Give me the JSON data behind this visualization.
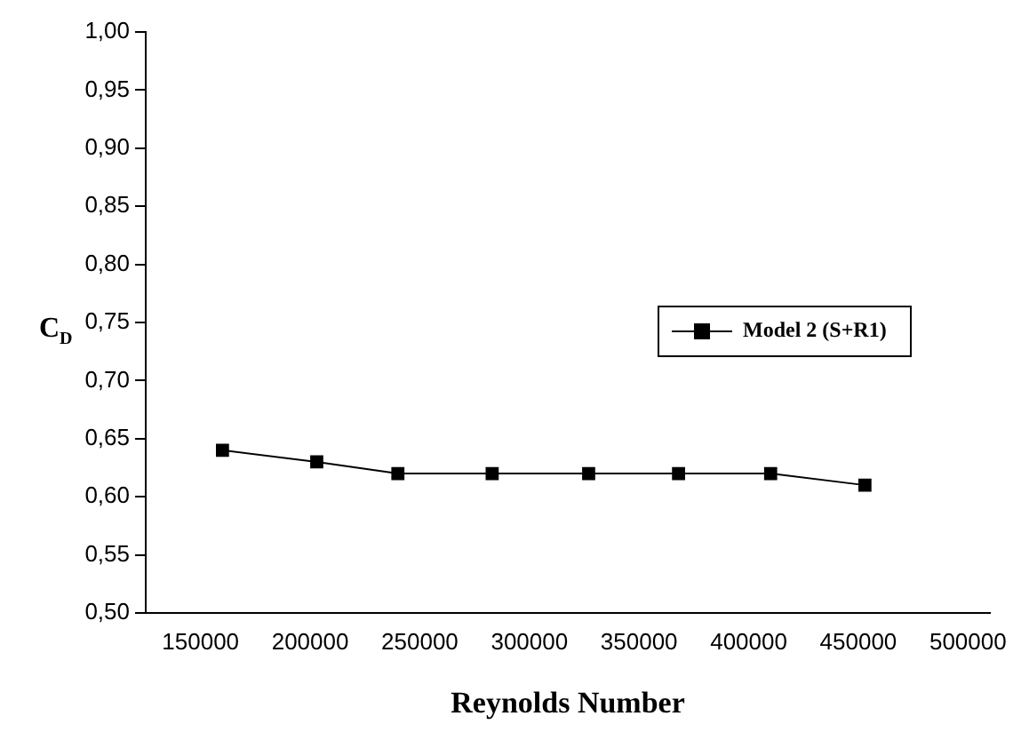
{
  "chart_data": {
    "type": "line",
    "xlabel": "Reynolds Number",
    "ylabel": "C$_{D}$",
    "x": [
      160000,
      203000,
      240000,
      283000,
      327000,
      368000,
      410000,
      453000
    ],
    "series": [
      {
        "name": "Model 2 (S+R1)",
        "color": "#000000",
        "values": [
          0.64,
          0.63,
          0.62,
          0.62,
          0.62,
          0.62,
          0.62,
          0.61
        ]
      }
    ],
    "xlim": [
      125000,
      510000
    ],
    "xticks": [
      150000,
      200000,
      250000,
      300000,
      350000,
      400000,
      450000,
      500000
    ],
    "ylim": [
      0.5,
      1.0
    ],
    "yticks": [
      {
        "value": 0.5,
        "label": "0,50"
      },
      {
        "value": 0.55,
        "label": "0,55"
      },
      {
        "value": 0.6,
        "label": "0,60"
      },
      {
        "value": 0.65,
        "label": "0,65"
      },
      {
        "value": 0.7,
        "label": "0,70"
      },
      {
        "value": 0.75,
        "label": "0,75"
      },
      {
        "value": 0.8,
        "label": "0,80"
      },
      {
        "value": 0.85,
        "label": "0,85"
      },
      {
        "value": 0.9,
        "label": "0,90"
      },
      {
        "value": 0.95,
        "label": "0,95"
      },
      {
        "value": 1.0,
        "label": "1,00"
      }
    ],
    "marker": "square",
    "line_style": "solid",
    "legend": "right",
    "grid": false
  }
}
